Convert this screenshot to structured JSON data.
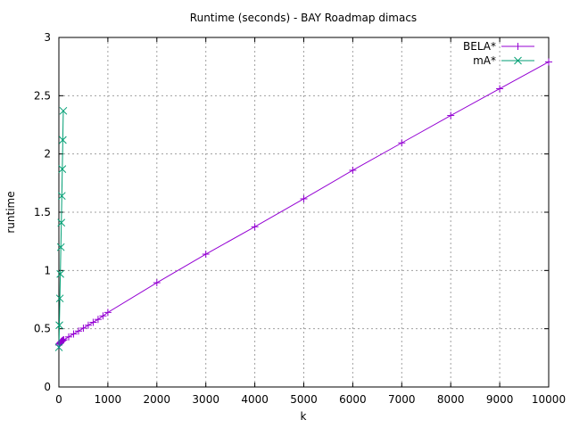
{
  "chart_data": {
    "type": "line",
    "title": "Runtime (seconds) - BAY Roadmap dimacs",
    "xlabel": "k",
    "ylabel": "runtime",
    "xlim": [
      0,
      10000
    ],
    "ylim": [
      0,
      3
    ],
    "x_ticks": [
      "0",
      "1000",
      "2000",
      "3000",
      "4000",
      "5000",
      "6000",
      "7000",
      "8000",
      "9000",
      "10000"
    ],
    "y_ticks": [
      "0",
      "0.5",
      "1",
      "1.5",
      "2",
      "2.5",
      "3"
    ],
    "grid": true,
    "legend_position": "top-right",
    "series": [
      {
        "name": "BELA*",
        "color": "#9400d3",
        "marker": "plus",
        "points": [
          [
            1,
            0.36
          ],
          [
            10,
            0.37
          ],
          [
            20,
            0.375
          ],
          [
            30,
            0.38
          ],
          [
            40,
            0.385
          ],
          [
            50,
            0.39
          ],
          [
            60,
            0.393
          ],
          [
            70,
            0.397
          ],
          [
            80,
            0.4
          ],
          [
            90,
            0.403
          ],
          [
            100,
            0.405
          ],
          [
            200,
            0.43
          ],
          [
            300,
            0.455
          ],
          [
            400,
            0.48
          ],
          [
            500,
            0.505
          ],
          [
            600,
            0.53
          ],
          [
            700,
            0.555
          ],
          [
            800,
            0.58
          ],
          [
            900,
            0.61
          ],
          [
            1000,
            0.64
          ],
          [
            2000,
            0.895
          ],
          [
            3000,
            1.14
          ],
          [
            4000,
            1.375
          ],
          [
            5000,
            1.615
          ],
          [
            6000,
            1.86
          ],
          [
            7000,
            2.095
          ],
          [
            8000,
            2.33
          ],
          [
            9000,
            2.56
          ],
          [
            10000,
            2.79
          ]
        ]
      },
      {
        "name": "mA*",
        "color": "#009e73",
        "marker": "cross",
        "points": [
          [
            1,
            0.34
          ],
          [
            10,
            0.53
          ],
          [
            20,
            0.76
          ],
          [
            30,
            0.97
          ],
          [
            40,
            1.2
          ],
          [
            50,
            1.41
          ],
          [
            60,
            1.64
          ],
          [
            70,
            1.87
          ],
          [
            80,
            2.12
          ],
          [
            90,
            2.37
          ]
        ]
      }
    ]
  }
}
